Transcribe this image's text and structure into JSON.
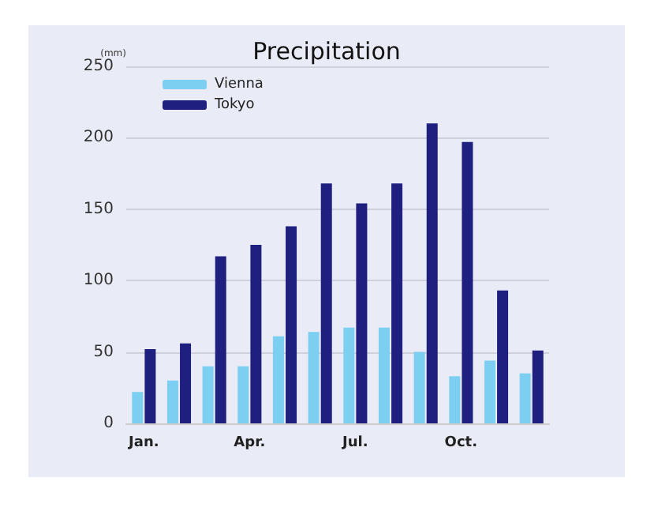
{
  "chart_data": {
    "type": "bar",
    "title": "Precipitation",
    "ylabel": "(mm)",
    "categories": [
      "Jan.",
      null,
      null,
      "Apr.",
      null,
      null,
      "Jul.",
      null,
      null,
      "Oct.",
      null,
      null
    ],
    "series": [
      {
        "name": "Vienna",
        "color": "#7ccff0",
        "values": [
          22,
          30,
          40,
          40,
          61,
          64,
          67,
          67,
          50,
          33,
          44,
          35
        ]
      },
      {
        "name": "Tokyo",
        "color": "#1f1f80",
        "values": [
          52,
          56,
          117,
          125,
          138,
          168,
          154,
          168,
          210,
          197,
          93,
          51
        ]
      }
    ],
    "ylim": [
      0,
      250
    ],
    "yticks": [
      0,
      50,
      100,
      150,
      200,
      250
    ],
    "grid": "y",
    "legend": "top left"
  }
}
